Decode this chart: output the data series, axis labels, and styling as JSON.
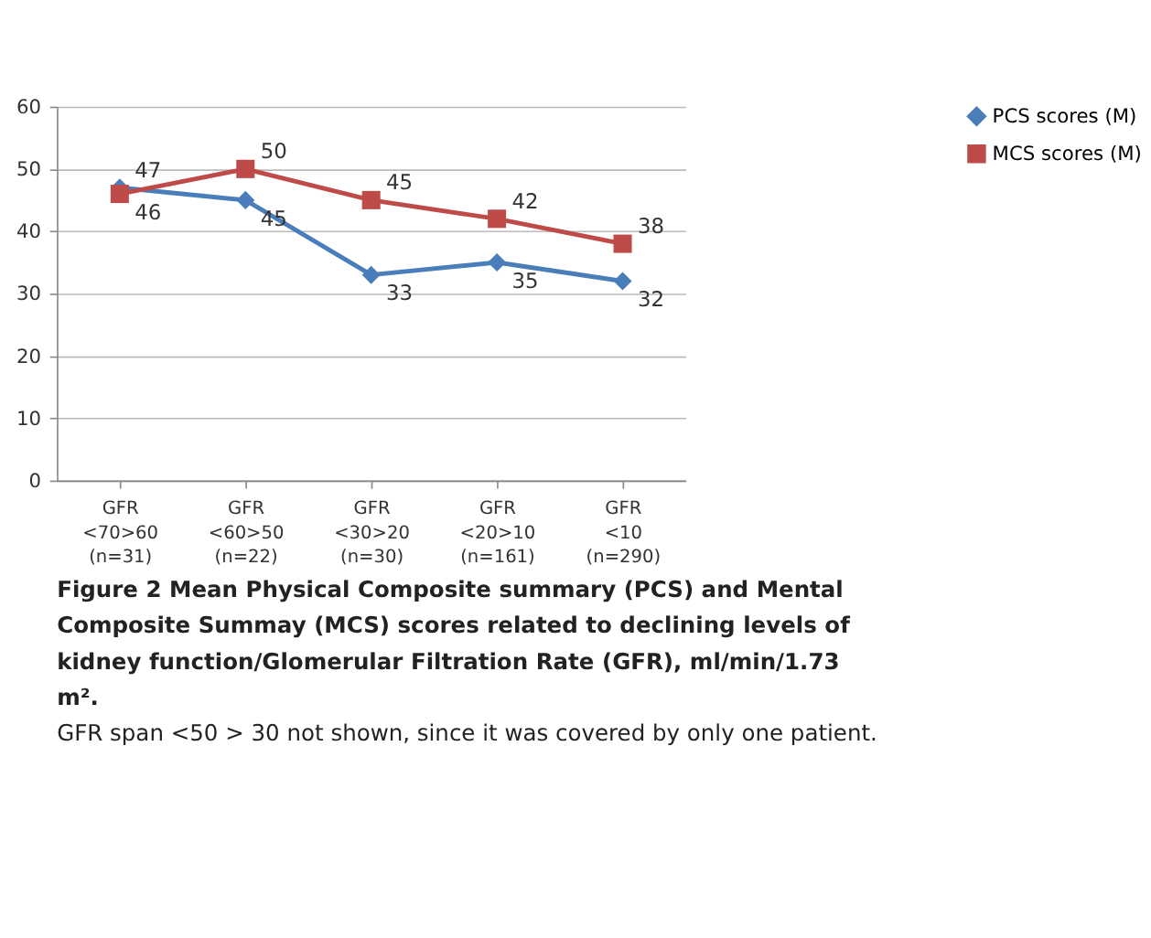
{
  "chart_data": {
    "type": "line",
    "categories": [
      "GFR\n<70>60\n(n=31)",
      "GFR\n<60>50\n(n=22)",
      "GFR\n<30>20\n(n=30)",
      "GFR\n<20>10\n(n=161)",
      "GFR\n<10\n(n=290)"
    ],
    "series": [
      {
        "name": "PCS  scores (M)",
        "color": "#4a7ebb",
        "marker": "diamond",
        "values": [
          47,
          45,
          33,
          35,
          32
        ]
      },
      {
        "name": "MCS scores (M)",
        "color": "#be4b48",
        "marker": "square",
        "values": [
          46,
          50,
          45,
          42,
          38
        ]
      }
    ],
    "ylim": [
      0,
      60
    ],
    "yticks": [
      0,
      10,
      20,
      30,
      40,
      50,
      60
    ],
    "grid": "y",
    "legend": "right",
    "data_labels": true,
    "line_style": "solid",
    "annotations": [
      "Figure 2 Mean Physical Composite summary (PCS) and Mental Composite Summay (MCS) scores related to declining levels of kidney function/Glomerular Filtration Rate (GFR), ml/min/1.73 m².",
      "GFR span <50 > 30 not shown, since it was covered by only one patient."
    ]
  }
}
